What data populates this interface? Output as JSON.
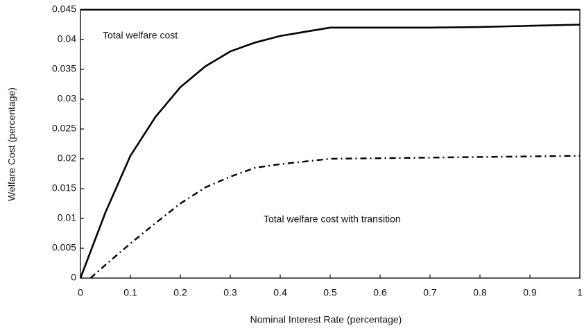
{
  "chart_data": {
    "type": "line",
    "x_label": "Nominal Interest Rate (percentage)",
    "y_label": "Welfare Cost (percentage)",
    "annotations": [
      "Total welfare cost",
      "Total welfare cost with transition"
    ],
    "xlim": [
      0,
      1
    ],
    "ylim": [
      0,
      0.045
    ],
    "xticks": [
      0,
      0.1,
      0.2,
      0.3,
      0.4,
      0.5,
      0.6,
      0.7,
      0.8,
      0.9,
      1
    ],
    "yticks": [
      0,
      0.005,
      0.01,
      0.015,
      0.02,
      0.025,
      0.03,
      0.035,
      0.04,
      0.045
    ],
    "series": [
      {
        "color": "#000000",
        "dash": "solid",
        "x": [
          0,
          0.05,
          0.1,
          0.15,
          0.2,
          0.25,
          0.3,
          0.35,
          0.4,
          0.45,
          0.5,
          0.6,
          0.7,
          0.8,
          0.9,
          1
        ],
        "values": [
          0,
          0.011,
          0.0205,
          0.027,
          0.032,
          0.0355,
          0.038,
          0.0395,
          0.0406,
          0.0413,
          0.042,
          0.042,
          0.042,
          0.0421,
          0.0423,
          0.0425
        ]
      },
      {
        "color": "#000000",
        "dash": "dashdot",
        "x": [
          0.02,
          0.05,
          0.1,
          0.15,
          0.2,
          0.25,
          0.3,
          0.35,
          0.4,
          0.5,
          0.6,
          0.7,
          0.8,
          0.9,
          1
        ],
        "values": [
          0,
          0.0022,
          0.0058,
          0.0092,
          0.0125,
          0.0152,
          0.017,
          0.0185,
          0.0191,
          0.02,
          0.0201,
          0.0202,
          0.0203,
          0.0204,
          0.0205
        ]
      }
    ]
  }
}
